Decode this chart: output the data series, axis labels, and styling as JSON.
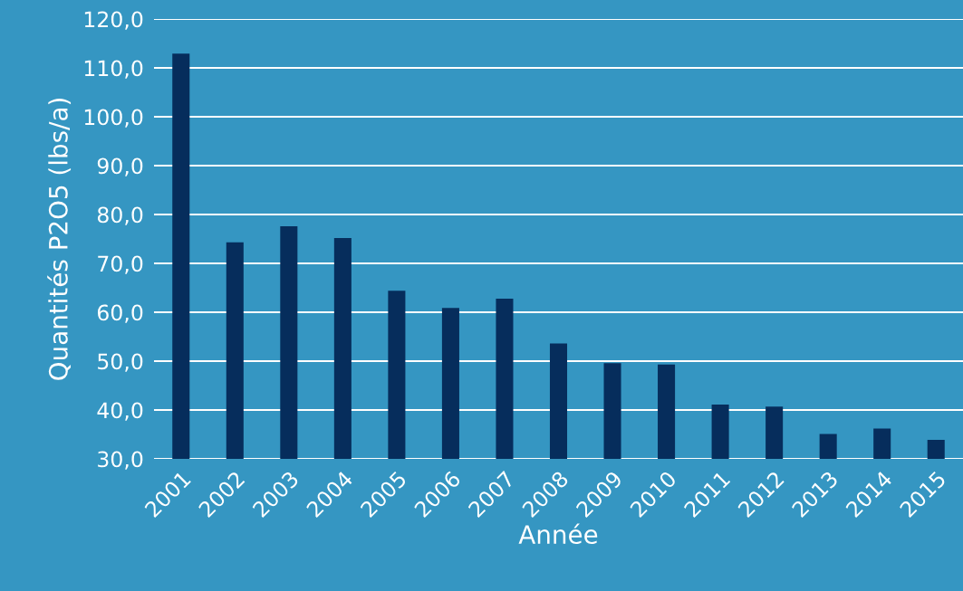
{
  "chart_data": {
    "type": "bar",
    "xlabel": "Année",
    "ylabel": "Quantités P2O5 (lbs/a)",
    "categories": [
      "2001",
      "2002",
      "2003",
      "2004",
      "2005",
      "2006",
      "2007",
      "2008",
      "2009",
      "2010",
      "2011",
      "2012",
      "2013",
      "2014",
      "2015"
    ],
    "values": [
      112.9,
      74.3,
      77.6,
      75.2,
      64.4,
      60.9,
      62.8,
      53.6,
      49.6,
      49.3,
      41.1,
      40.7,
      35.1,
      36.2,
      33.9
    ],
    "color": "#062d5c",
    "ylim": [
      30,
      120
    ],
    "yticks": [
      {
        "value": 30,
        "label": "30,0"
      },
      {
        "value": 40,
        "label": "40,0"
      },
      {
        "value": 50,
        "label": "50,0"
      },
      {
        "value": 60,
        "label": "60,0"
      },
      {
        "value": 70,
        "label": "70,0"
      },
      {
        "value": 80,
        "label": "80,0"
      },
      {
        "value": 90,
        "label": "90,0"
      },
      {
        "value": 100,
        "label": "100,0"
      },
      {
        "value": 110,
        "label": "110,0"
      },
      {
        "value": 120,
        "label": "120,0"
      }
    ],
    "grid": "y"
  }
}
